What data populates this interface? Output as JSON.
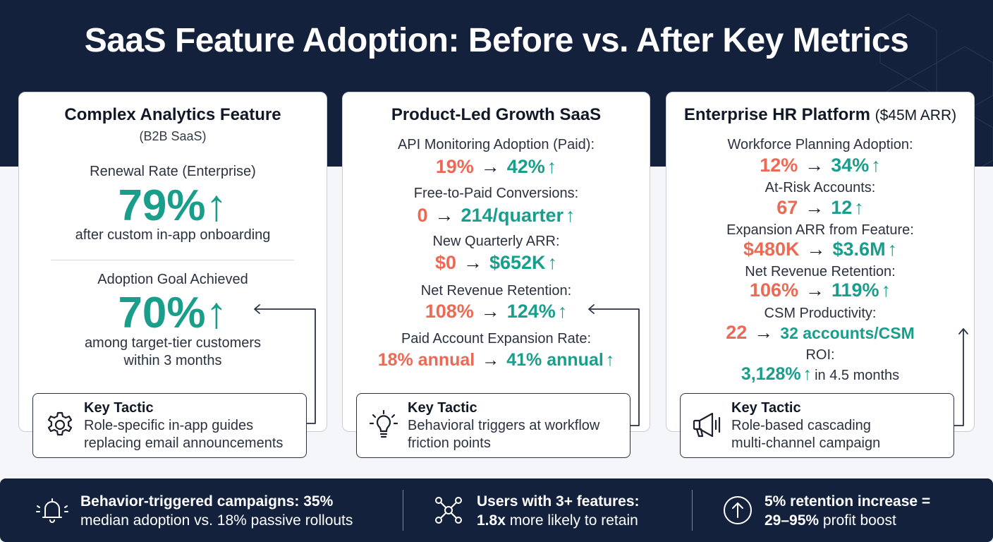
{
  "title": "SaaS Feature Adoption: Before vs. After Key Metrics",
  "card1": {
    "title": "Complex Analytics Feature",
    "subtitle": "(B2B SaaS)",
    "metric1_label": "Renewal Rate (Enterprise)",
    "metric1_value": "79%",
    "metric1_arrow": "↑",
    "metric1_note": "after custom in-app onboarding",
    "metric2_label": "Adoption Goal Achieved",
    "metric2_value": "70%",
    "metric2_arrow": "↑",
    "metric2_note_line1": "among target-tier customers",
    "metric2_note_line2": "within 3 months",
    "tactic_heading": "Key Tactic",
    "tactic_line1": "Role-specific in-app guides",
    "tactic_line2": "replacing email announcements",
    "tactic_icon": "gear-icon"
  },
  "card2": {
    "title": "Product-Led Growth SaaS",
    "metrics": [
      {
        "label": "API Monitoring Adoption (Paid):",
        "before": "19%",
        "after": "42%"
      },
      {
        "label": "Free-to-Paid Conversions:",
        "before": "0",
        "after": "214/quarter"
      },
      {
        "label": "New Quarterly ARR:",
        "before": "$0",
        "after": "$652K"
      },
      {
        "label": "Net Revenue Retention:",
        "before": "108%",
        "after": "124%"
      },
      {
        "label": "Paid Account Expansion Rate:",
        "before": "18% annual",
        "after": "41% annual"
      }
    ],
    "tactic_heading": "Key Tactic",
    "tactic_line1": "Behavioral triggers at workflow",
    "tactic_line2": "friction points",
    "tactic_icon": "lightbulb-icon"
  },
  "card3": {
    "title": "Enterprise HR Platform",
    "title_suffix": "($45M ARR)",
    "metrics": [
      {
        "label": "Workforce Planning Adoption:",
        "before": "12%",
        "after": "34%"
      },
      {
        "label": "At-Risk Accounts:",
        "before": "67",
        "after": "12"
      },
      {
        "label": "Expansion ARR from Feature:",
        "before": "$480K",
        "after": "$3.6M"
      },
      {
        "label": "Net Revenue Retention:",
        "before": "106%",
        "after": "119%"
      },
      {
        "label": "CSM Productivity:",
        "before": "22",
        "after": "32 accounts/CSM"
      }
    ],
    "roi_label": "ROI:",
    "roi_value": "3,128%",
    "roi_tail": "in 4.5 months",
    "tactic_heading": "Key Tactic",
    "tactic_line1": "Role-based cascading",
    "tactic_line2": "multi-channel campaign",
    "tactic_icon": "megaphone-icon"
  },
  "symbols": {
    "arrow": "→",
    "up": "↑"
  },
  "footer": [
    {
      "bold": "Behavior-triggered campaigns: 35%",
      "text": "median adoption vs. 18% passive rollouts",
      "icon": "bell-icon"
    },
    {
      "bold": "Users with 3+ features:",
      "bold2": "1.8x",
      "text": "more likely to retain",
      "icon": "network-icon"
    },
    {
      "bold": "5% retention increase =",
      "bold2": "29–95%",
      "text": "profit boost",
      "icon": "arrow-up-circle-icon"
    }
  ],
  "colors": {
    "navy": "#14213d",
    "teal": "#1a9e8c",
    "coral": "#ec6a55"
  }
}
